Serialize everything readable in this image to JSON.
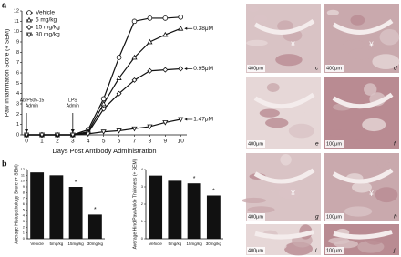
{
  "chart_data": [
    {
      "type": "line",
      "panel": "a",
      "xlabel": "Days Post Antibody Administration",
      "ylabel": "Paw Inflammation Score (+ SEM)",
      "x": [
        0,
        1,
        2,
        3,
        4,
        5,
        6,
        7,
        8,
        9,
        10
      ],
      "xlim": [
        -0.3,
        10.4
      ],
      "xticks": [
        0,
        1,
        2,
        3,
        4,
        5,
        6,
        7,
        8,
        9,
        10
      ],
      "ylim": [
        0,
        12
      ],
      "yticks": [
        0,
        1,
        2,
        3,
        4,
        5,
        6,
        7,
        8,
        9,
        10,
        11,
        12
      ],
      "series": [
        {
          "name": "Vehicle",
          "marker": "circle",
          "color": "#111111",
          "values": [
            0,
            0,
            0,
            0,
            0.5,
            3.5,
            7.5,
            11,
            11.3,
            11.3,
            11.4
          ]
        },
        {
          "name": "5 mg/kg",
          "marker": "triangle-up",
          "color": "#111111",
          "values": [
            0,
            0,
            0,
            0,
            0.3,
            3,
            5.5,
            7.5,
            9,
            9.7,
            10.3
          ],
          "label": "0.38μM"
        },
        {
          "name": "15 mg/kg",
          "marker": "diamond",
          "color": "#111111",
          "values": [
            0,
            0,
            0,
            0,
            0.2,
            2.5,
            4,
            5.3,
            6.2,
            6.3,
            6.4
          ],
          "label": "0.95μM"
        },
        {
          "name": "30 mg/kg",
          "marker": "triangle-down",
          "color": "#111111",
          "values": [
            0,
            0,
            0,
            0,
            0.1,
            0.3,
            0.4,
            0.6,
            0.8,
            1.2,
            1.5
          ],
          "label": "1.47μM"
        }
      ],
      "events": [
        {
          "x": 0,
          "text": [
            "Ab/P505-15",
            "Admin"
          ]
        },
        {
          "x": 3,
          "text": [
            "LPS",
            "Admin"
          ]
        }
      ]
    },
    {
      "type": "bar",
      "panel": "b",
      "ylabel": "Average Histopathology Score (+ SEM)",
      "categories": [
        "Vehicle",
        "5mg/kg",
        "15mg/kg",
        "30mg/kg"
      ],
      "values": [
        11.5,
        11,
        9,
        4.2
      ],
      "color": "#111111",
      "ylim": [
        0,
        12
      ],
      "yticks": [
        0,
        1,
        2,
        3,
        4,
        5,
        6,
        7,
        8,
        9,
        10,
        11,
        12
      ],
      "stars": [
        {
          "category": "15mg/kg",
          "text": "*"
        },
        {
          "category": "30mg/kg",
          "text": "*"
        }
      ]
    },
    {
      "type": "bar",
      "ylabel": "Average Hind Paw Ankle Thickness (+ SEM)",
      "categories": [
        "Vehicle",
        "5mg/kg",
        "15mg/kg",
        "30mg/kg"
      ],
      "values": [
        3.65,
        3.35,
        3.2,
        2.5
      ],
      "color": "#111111",
      "ylim": [
        0,
        4
      ],
      "yticks": [
        0,
        1,
        2,
        3,
        4
      ],
      "stars": [
        {
          "category": "15mg/kg",
          "text": "*"
        },
        {
          "category": "30mg/kg",
          "text": "*"
        }
      ]
    }
  ],
  "images": [
    {
      "label": "c",
      "scale": "400μm",
      "symbol": "¥"
    },
    {
      "label": "d",
      "scale": "400μm",
      "symbol": "¥"
    },
    {
      "label": "e",
      "scale": "400μm"
    },
    {
      "label": "f",
      "scale": "100μm"
    },
    {
      "label": "g",
      "scale": "400μm",
      "symbol": "¥"
    },
    {
      "label": "h",
      "scale": "100μm",
      "symbol": "¥"
    },
    {
      "label": "i",
      "scale": "400μm"
    },
    {
      "label": "j",
      "scale": "100μm"
    }
  ]
}
